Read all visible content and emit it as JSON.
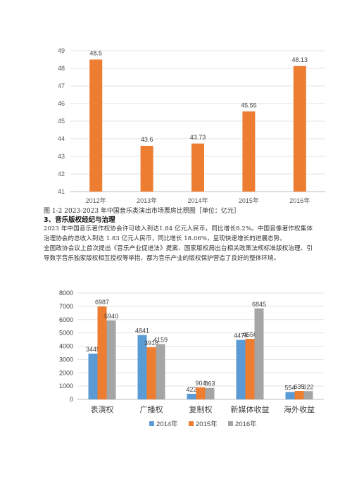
{
  "figure1": {
    "caption": "图 1-2 2023-2023 年中国音乐类演出市场票房比照图［单位：亿元］"
  },
  "section": {
    "heading": "3、音乐版权经纪与治理"
  },
  "paragraphs": [
    "2023 年中国音乐著作权协会许可收入到达1.84 亿元人民币，同比增长8.2%。中国音像著作权集体治理协会的总收入到达 1.83 亿元人民币，同比增长 18.06%，呈现快速增长的进展态势。",
    "全国政协会议上首次提出《音乐产业促进法》提案、国家版权局出台相关政策法规标准版权治理、引导数字音乐独家版权相互授权等举措，都为音乐产业的版权保护营造了良好的整体环境。"
  ],
  "chart_data": [
    {
      "type": "bar",
      "categories": [
        "2012年",
        "2013年",
        "2014年",
        "2015年",
        "2016年"
      ],
      "values": [
        48.5,
        43.6,
        43.73,
        45.55,
        48.13
      ],
      "value_labels": [
        "48.5",
        "43.6",
        "43.73",
        "45.55",
        "48.13"
      ],
      "ylim": [
        41,
        49
      ],
      "yticks": [
        "41",
        "42",
        "43",
        "44",
        "45",
        "46",
        "47",
        "48",
        "49"
      ],
      "grid": true,
      "bar_color": "#ED7D31"
    },
    {
      "type": "bar",
      "categories": [
        "表演权",
        "广播权",
        "复制权",
        "新媒体收益",
        "海外收益"
      ],
      "series": [
        {
          "name": "2014年",
          "color": "#5B9BD5",
          "values": [
            3445,
            4841,
            422,
            4474,
            554
          ],
          "value_labels": [
            "3445",
            "4841",
            "422",
            "4474",
            "554"
          ]
        },
        {
          "name": "2015年",
          "color": "#ED7D31",
          "values": [
            6987,
            3918,
            904,
            4556,
            635
          ],
          "value_labels": [
            "6987",
            "3918",
            "904",
            "4556",
            "635"
          ]
        },
        {
          "name": "2016年",
          "color": "#A5A5A5",
          "values": [
            5940,
            4159,
            863,
            6845,
            622
          ],
          "value_labels": [
            "5940",
            "4159",
            "863",
            "6845",
            "622"
          ]
        }
      ],
      "ylim": [
        0,
        8000
      ],
      "yticks": [
        "0",
        "1000",
        "2000",
        "3000",
        "4000",
        "5000",
        "6000",
        "7000",
        "8000"
      ],
      "grid": true,
      "legend": "bottom"
    }
  ]
}
